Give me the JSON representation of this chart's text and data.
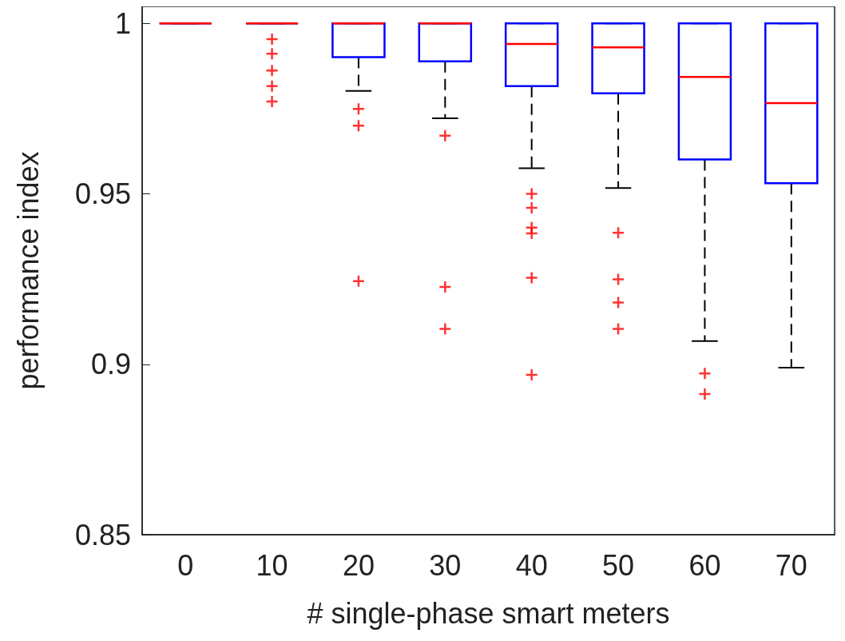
{
  "chart_data": {
    "type": "box",
    "xlabel": "# single-phase smart meters",
    "ylabel": "performance index",
    "categories": [
      "0",
      "10",
      "20",
      "30",
      "40",
      "50",
      "60",
      "70"
    ],
    "ylim": [
      0.85,
      1.005
    ],
    "yticks": [
      0.85,
      0.9,
      0.95,
      1
    ],
    "grid": false,
    "marker": "cross",
    "series": [
      {
        "color": "#0000ff",
        "boxes": [
          {
            "low": 1,
            "q1": 1,
            "median": 1,
            "q3": 1,
            "high": 1
          },
          {
            "low": 1,
            "q1": 1,
            "median": 1,
            "q3": 1,
            "high": 1,
            "outliers": [
              0.9954,
              0.9911,
              0.9862,
              0.9816,
              0.9771
            ]
          },
          {
            "low": 0.9802,
            "q1": 0.9901,
            "median": 1,
            "q3": 1,
            "high": 1,
            "outliers": [
              0.9749,
              0.97,
              0.9244
            ]
          },
          {
            "low": 0.9722,
            "q1": 0.9889,
            "median": 1,
            "q3": 1,
            "high": 1,
            "outliers": [
              0.9671,
              0.9227,
              0.9104
            ]
          },
          {
            "low": 0.9575,
            "q1": 0.9816,
            "median": 0.994,
            "q3": 1,
            "high": 1,
            "outliers": [
              0.95,
              0.9459,
              0.9401,
              0.9384,
              0.9254,
              0.8969
            ]
          },
          {
            "low": 0.9517,
            "q1": 0.9795,
            "median": 0.993,
            "q3": 1,
            "high": 1,
            "outliers": [
              0.9386,
              0.9249,
              0.9181,
              0.9104
            ]
          },
          {
            "low": 0.9068,
            "q1": 0.9601,
            "median": 0.9843,
            "q3": 1,
            "high": 1,
            "outliers": [
              0.8973,
              0.8913
            ]
          },
          {
            "low": 0.899,
            "q1": 0.9531,
            "median": 0.9766,
            "q3": 1,
            "high": 1
          }
        ]
      }
    ]
  }
}
